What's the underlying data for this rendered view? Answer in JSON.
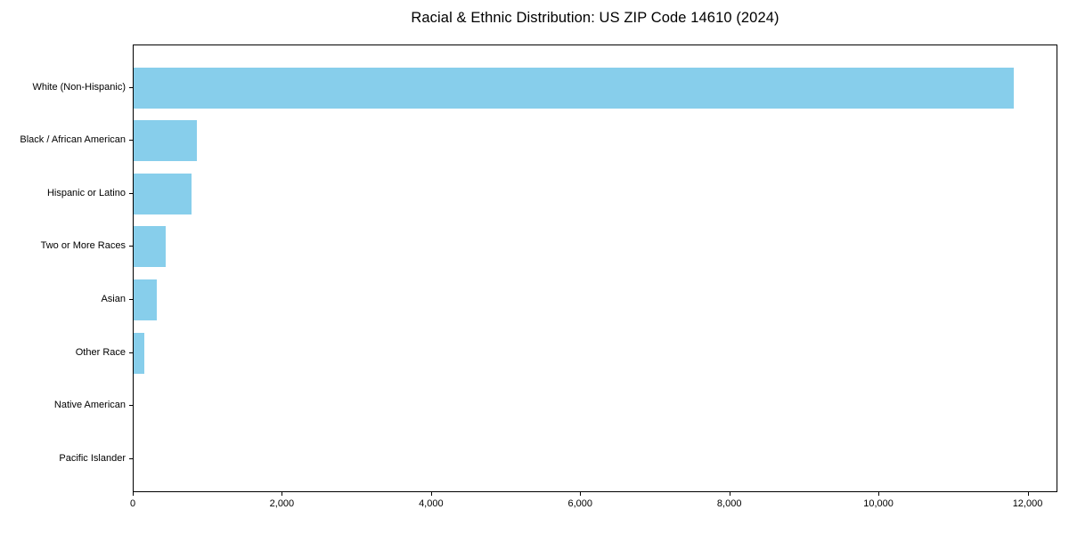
{
  "title": "Racial & Ethnic Distribution: US ZIP Code 14610 (2024)",
  "chart_data": {
    "type": "bar",
    "orientation": "horizontal",
    "title": "Racial & Ethnic Distribution: US ZIP Code 14610 (2024)",
    "xlabel": "",
    "ylabel": "",
    "categories": [
      "White (Non-Hispanic)",
      "Black / African American",
      "Hispanic or Latino",
      "Two or More Races",
      "Asian",
      "Other Race",
      "Native American",
      "Pacific Islander"
    ],
    "values": [
      11800,
      850,
      775,
      430,
      310,
      140,
      0,
      0
    ],
    "xlim": [
      0,
      12400
    ],
    "xticks": [
      0,
      2000,
      4000,
      6000,
      8000,
      10000,
      12000
    ],
    "xtick_labels": [
      "0",
      "2,000",
      "4,000",
      "6,000",
      "8,000",
      "10,000",
      "12,000"
    ],
    "bar_color": "#87CEEB",
    "plot_border_color": "#000000",
    "background_color": "#ffffff",
    "grid": false,
    "legend": null
  }
}
